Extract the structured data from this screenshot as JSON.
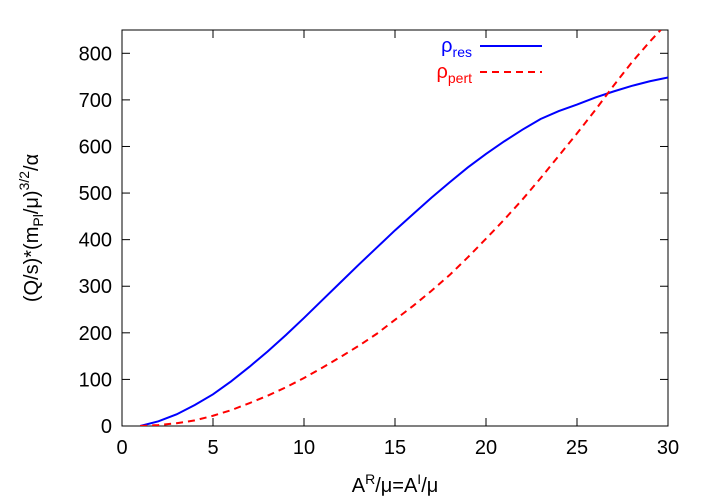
{
  "chart_data": {
    "type": "line",
    "xlabel": [
      "A",
      "R",
      "/μ=A",
      "I",
      "/μ"
    ],
    "ylabel": [
      "(Q/s)*(m",
      "Pl",
      "/μ)",
      "3/2",
      "/α"
    ],
    "xlim": [
      0,
      30
    ],
    "xticks": [
      0,
      5,
      10,
      15,
      20,
      25,
      30
    ],
    "ylim": [
      0,
      850
    ],
    "yticks": [
      0,
      100,
      200,
      300,
      400,
      500,
      600,
      700,
      800
    ],
    "legend": "top-right",
    "series": [
      {
        "name": [
          "ρ",
          "res"
        ],
        "color": "#0000ff",
        "dash": false,
        "x": [
          1,
          2,
          3,
          4,
          5,
          6,
          7,
          8,
          9,
          10,
          11,
          12,
          13,
          14,
          15,
          16,
          17,
          18,
          19,
          20,
          21,
          22,
          23,
          24,
          25,
          26,
          27,
          28,
          29,
          30
        ],
        "values": [
          0,
          10,
          25,
          45,
          68,
          96,
          127,
          160,
          195,
          232,
          270,
          308,
          346,
          383,
          420,
          455,
          490,
          523,
          555,
          584,
          611,
          636,
          659,
          676,
          690,
          705,
          718,
          730,
          740,
          748
        ]
      },
      {
        "name": [
          "ρ",
          "pert"
        ],
        "color": "#ff0000",
        "dash": true,
        "x": [
          1,
          2,
          3,
          4,
          5,
          6,
          7,
          8,
          9,
          10,
          11,
          12,
          13,
          14,
          15,
          16,
          17,
          18,
          19,
          20,
          21,
          22,
          23,
          24,
          25,
          26,
          27,
          28,
          29,
          29.6
        ],
        "values": [
          0,
          2,
          6,
          12,
          22,
          34,
          49,
          65,
          83,
          103,
          125,
          148,
          172,
          198,
          228,
          258,
          290,
          324,
          362,
          402,
          443,
          486,
          532,
          580,
          628,
          678,
          730,
          780,
          825,
          850
        ]
      }
    ]
  }
}
